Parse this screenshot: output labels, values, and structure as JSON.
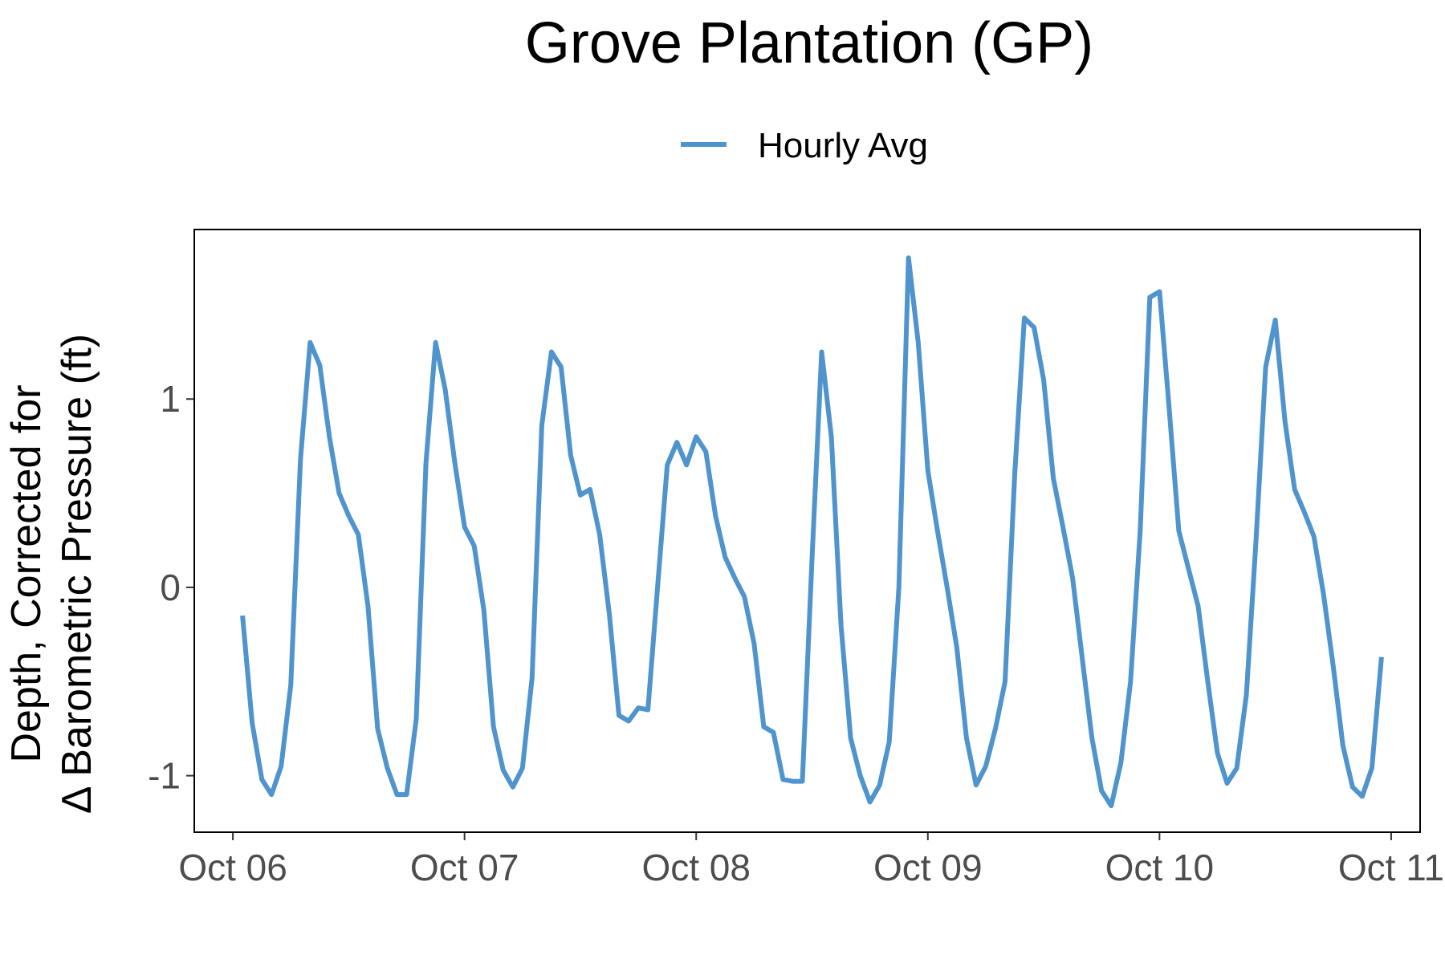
{
  "colors": {
    "series": "#4f94cd",
    "background": "#ffffff",
    "tick_text": "#4d4d4d"
  },
  "chart_data": {
    "type": "line",
    "title": "Grove Plantation (GP)",
    "xlabel": "",
    "ylabel_lines": [
      "Depth, Corrected for",
      "Δ Barometric Pressure (ft)"
    ],
    "legend": {
      "position": "top",
      "entries": [
        "Hourly Avg"
      ]
    },
    "x_ticks": [
      "Oct 06",
      "Oct 07",
      "Oct 08",
      "Oct 09",
      "Oct 10",
      "Oct 11"
    ],
    "y_ticks": [
      -1,
      0,
      1
    ],
    "xlim": [
      "2023-10-05 20:00",
      "2023-10-11 03:00"
    ],
    "ylim": [
      -1.3,
      1.9
    ],
    "grid": false,
    "series": [
      {
        "name": "Hourly Avg",
        "points": [
          [
            "2023-10-06 01:00",
            -0.15
          ],
          [
            "2023-10-06 02:00",
            -0.72
          ],
          [
            "2023-10-06 03:00",
            -1.02
          ],
          [
            "2023-10-06 04:00",
            -1.1
          ],
          [
            "2023-10-06 05:00",
            -0.95
          ],
          [
            "2023-10-06 06:00",
            -0.52
          ],
          [
            "2023-10-06 07:00",
            0.68
          ],
          [
            "2023-10-06 08:00",
            1.3
          ],
          [
            "2023-10-06 09:00",
            1.18
          ],
          [
            "2023-10-06 10:00",
            0.8
          ],
          [
            "2023-10-06 11:00",
            0.5
          ],
          [
            "2023-10-06 12:00",
            0.38
          ],
          [
            "2023-10-06 13:00",
            0.28
          ],
          [
            "2023-10-06 14:00",
            -0.1
          ],
          [
            "2023-10-06 15:00",
            -0.75
          ],
          [
            "2023-10-06 16:00",
            -0.96
          ],
          [
            "2023-10-06 17:00",
            -1.1
          ],
          [
            "2023-10-06 18:00",
            -1.1
          ],
          [
            "2023-10-06 19:00",
            -0.7
          ],
          [
            "2023-10-06 20:00",
            0.66
          ],
          [
            "2023-10-06 21:00",
            1.3
          ],
          [
            "2023-10-06 22:00",
            1.05
          ],
          [
            "2023-10-06 23:00",
            0.66
          ],
          [
            "2023-10-07 00:00",
            0.32
          ],
          [
            "2023-10-07 01:00",
            0.22
          ],
          [
            "2023-10-07 02:00",
            -0.12
          ],
          [
            "2023-10-07 03:00",
            -0.74
          ],
          [
            "2023-10-07 04:00",
            -0.97
          ],
          [
            "2023-10-07 05:00",
            -1.06
          ],
          [
            "2023-10-07 06:00",
            -0.96
          ],
          [
            "2023-10-07 07:00",
            -0.48
          ],
          [
            "2023-10-07 08:00",
            0.86
          ],
          [
            "2023-10-07 09:00",
            1.25
          ],
          [
            "2023-10-07 10:00",
            1.17
          ],
          [
            "2023-10-07 11:00",
            0.7
          ],
          [
            "2023-10-07 12:00",
            0.49
          ],
          [
            "2023-10-07 13:00",
            0.52
          ],
          [
            "2023-10-07 14:00",
            0.28
          ],
          [
            "2023-10-07 15:00",
            -0.14
          ],
          [
            "2023-10-07 16:00",
            -0.68
          ],
          [
            "2023-10-07 17:00",
            -0.71
          ],
          [
            "2023-10-07 18:00",
            -0.64
          ],
          [
            "2023-10-07 19:00",
            -0.65
          ],
          [
            "2023-10-07 20:00",
            0.0
          ],
          [
            "2023-10-07 21:00",
            0.65
          ],
          [
            "2023-10-07 22:00",
            0.77
          ],
          [
            "2023-10-07 23:00",
            0.65
          ],
          [
            "2023-10-08 00:00",
            0.8
          ],
          [
            "2023-10-08 01:00",
            0.72
          ],
          [
            "2023-10-08 02:00",
            0.38
          ],
          [
            "2023-10-08 03:00",
            0.16
          ],
          [
            "2023-10-08 04:00",
            0.05
          ],
          [
            "2023-10-08 05:00",
            -0.05
          ],
          [
            "2023-10-08 06:00",
            -0.3
          ],
          [
            "2023-10-08 07:00",
            -0.74
          ],
          [
            "2023-10-08 08:00",
            -0.77
          ],
          [
            "2023-10-08 09:00",
            -1.02
          ],
          [
            "2023-10-08 10:00",
            -1.03
          ],
          [
            "2023-10-08 11:00",
            -1.03
          ],
          [
            "2023-10-08 12:00",
            0.15
          ],
          [
            "2023-10-08 13:00",
            1.25
          ],
          [
            "2023-10-08 14:00",
            0.8
          ],
          [
            "2023-10-08 15:00",
            -0.2
          ],
          [
            "2023-10-08 16:00",
            -0.8
          ],
          [
            "2023-10-08 17:00",
            -1.0
          ],
          [
            "2023-10-08 18:00",
            -1.14
          ],
          [
            "2023-10-08 19:00",
            -1.05
          ],
          [
            "2023-10-08 20:00",
            -0.82
          ],
          [
            "2023-10-08 21:00",
            0.0
          ],
          [
            "2023-10-08 22:00",
            1.75
          ],
          [
            "2023-10-08 23:00",
            1.3
          ],
          [
            "2023-10-09 00:00",
            0.62
          ],
          [
            "2023-10-09 01:00",
            0.3
          ],
          [
            "2023-10-09 02:00",
            0.0
          ],
          [
            "2023-10-09 03:00",
            -0.32
          ],
          [
            "2023-10-09 04:00",
            -0.8
          ],
          [
            "2023-10-09 05:00",
            -1.05
          ],
          [
            "2023-10-09 06:00",
            -0.95
          ],
          [
            "2023-10-09 07:00",
            -0.75
          ],
          [
            "2023-10-09 08:00",
            -0.5
          ],
          [
            "2023-10-09 09:00",
            0.6
          ],
          [
            "2023-10-09 10:00",
            1.43
          ],
          [
            "2023-10-09 11:00",
            1.38
          ],
          [
            "2023-10-09 12:00",
            1.1
          ],
          [
            "2023-10-09 13:00",
            0.58
          ],
          [
            "2023-10-09 14:00",
            0.32
          ],
          [
            "2023-10-09 15:00",
            0.05
          ],
          [
            "2023-10-09 16:00",
            -0.38
          ],
          [
            "2023-10-09 17:00",
            -0.8
          ],
          [
            "2023-10-09 18:00",
            -1.08
          ],
          [
            "2023-10-09 19:00",
            -1.16
          ],
          [
            "2023-10-09 20:00",
            -0.93
          ],
          [
            "2023-10-09 21:00",
            -0.5
          ],
          [
            "2023-10-09 22:00",
            0.3
          ],
          [
            "2023-10-09 23:00",
            1.54
          ],
          [
            "2023-10-10 00:00",
            1.57
          ],
          [
            "2023-10-10 01:00",
            0.95
          ],
          [
            "2023-10-10 02:00",
            0.3
          ],
          [
            "2023-10-10 03:00",
            0.1
          ],
          [
            "2023-10-10 04:00",
            -0.1
          ],
          [
            "2023-10-10 05:00",
            -0.5
          ],
          [
            "2023-10-10 06:00",
            -0.88
          ],
          [
            "2023-10-10 07:00",
            -1.04
          ],
          [
            "2023-10-10 08:00",
            -0.96
          ],
          [
            "2023-10-10 09:00",
            -0.57
          ],
          [
            "2023-10-10 10:00",
            0.25
          ],
          [
            "2023-10-10 11:00",
            1.17
          ],
          [
            "2023-10-10 12:00",
            1.42
          ],
          [
            "2023-10-10 13:00",
            0.88
          ],
          [
            "2023-10-10 14:00",
            0.52
          ],
          [
            "2023-10-10 15:00",
            0.4
          ],
          [
            "2023-10-10 16:00",
            0.27
          ],
          [
            "2023-10-10 17:00",
            -0.04
          ],
          [
            "2023-10-10 18:00",
            -0.42
          ],
          [
            "2023-10-10 19:00",
            -0.84
          ],
          [
            "2023-10-10 20:00",
            -1.06
          ],
          [
            "2023-10-10 21:00",
            -1.11
          ],
          [
            "2023-10-10 22:00",
            -0.96
          ],
          [
            "2023-10-10 23:00",
            -0.37
          ]
        ]
      }
    ]
  }
}
